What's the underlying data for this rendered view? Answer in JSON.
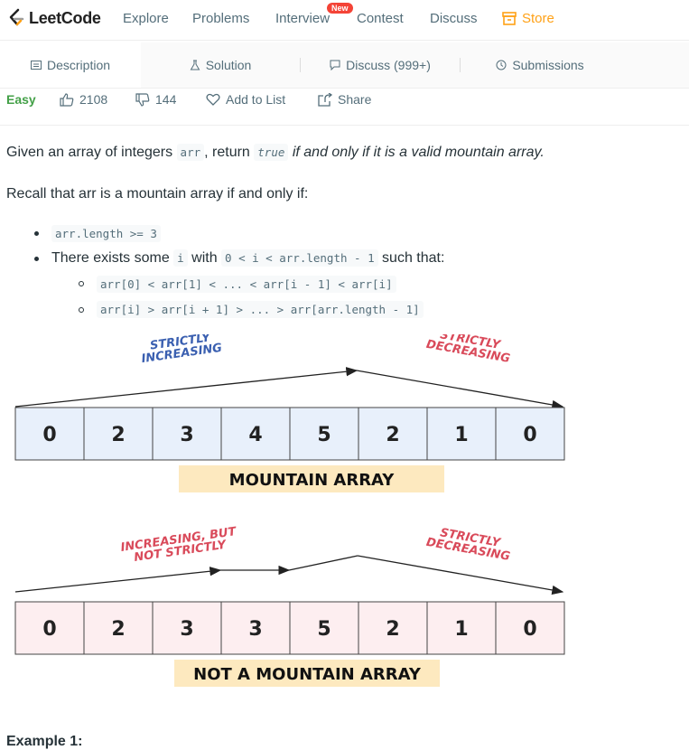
{
  "nav": {
    "logo_text": "LeetCode",
    "items": [
      "Explore",
      "Problems",
      "Interview",
      "Contest",
      "Discuss"
    ],
    "new_badge": "New",
    "store": "Store"
  },
  "tabs": [
    "Description",
    "Solution",
    "Discuss (999+)",
    "Submissions"
  ],
  "meta": {
    "difficulty": "Easy",
    "likes": "2108",
    "dislikes": "144",
    "add_to_list": "Add to List",
    "share": "Share"
  },
  "statement": {
    "p1_a": "Given an array of integers ",
    "p1_code1": "arr",
    "p1_b": ", return ",
    "p1_code2": "true",
    "p1_c": " if and only if it is a valid mountain array.",
    "p2": "Recall that arr is a mountain array if and only if:",
    "b1_code": "arr.length >= 3",
    "b2_a": "There exists some ",
    "b2_code1": "i",
    "b2_b": " with ",
    "b2_code2": "0 < i < arr.length - 1",
    "b2_c": " such that:",
    "sub1": "arr[0] < arr[1] < ... < arr[i - 1] < arr[i]",
    "sub2": "arr[i] > arr[i + 1] > ... > arr[arr.length - 1]"
  },
  "diagram1": {
    "values": [
      "0",
      "2",
      "3",
      "4",
      "5",
      "2",
      "1",
      "0"
    ],
    "left_label": [
      "STRICTLY",
      "INCREASING"
    ],
    "right_label": [
      "STRICTLY",
      "DECREASING"
    ],
    "caption": "MOUNTAIN ARRAY",
    "cell_color": "#e8f0fb"
  },
  "diagram2": {
    "values": [
      "0",
      "2",
      "3",
      "3",
      "5",
      "2",
      "1",
      "0"
    ],
    "left_label": [
      "INCREASING, BUT",
      "NOT STRICTLY"
    ],
    "right_label": [
      "STRICTLY",
      "DECREASING"
    ],
    "caption": "NOT A MOUNTAIN ARRAY",
    "cell_color": "#fdeef0"
  },
  "example_heading": "Example 1:",
  "colors": {
    "accent": "#ffa116",
    "easy": "#43a047",
    "label_blue": "#3a5fb0",
    "label_red": "#d94a5a",
    "caption_bg": "#fde9bf"
  }
}
